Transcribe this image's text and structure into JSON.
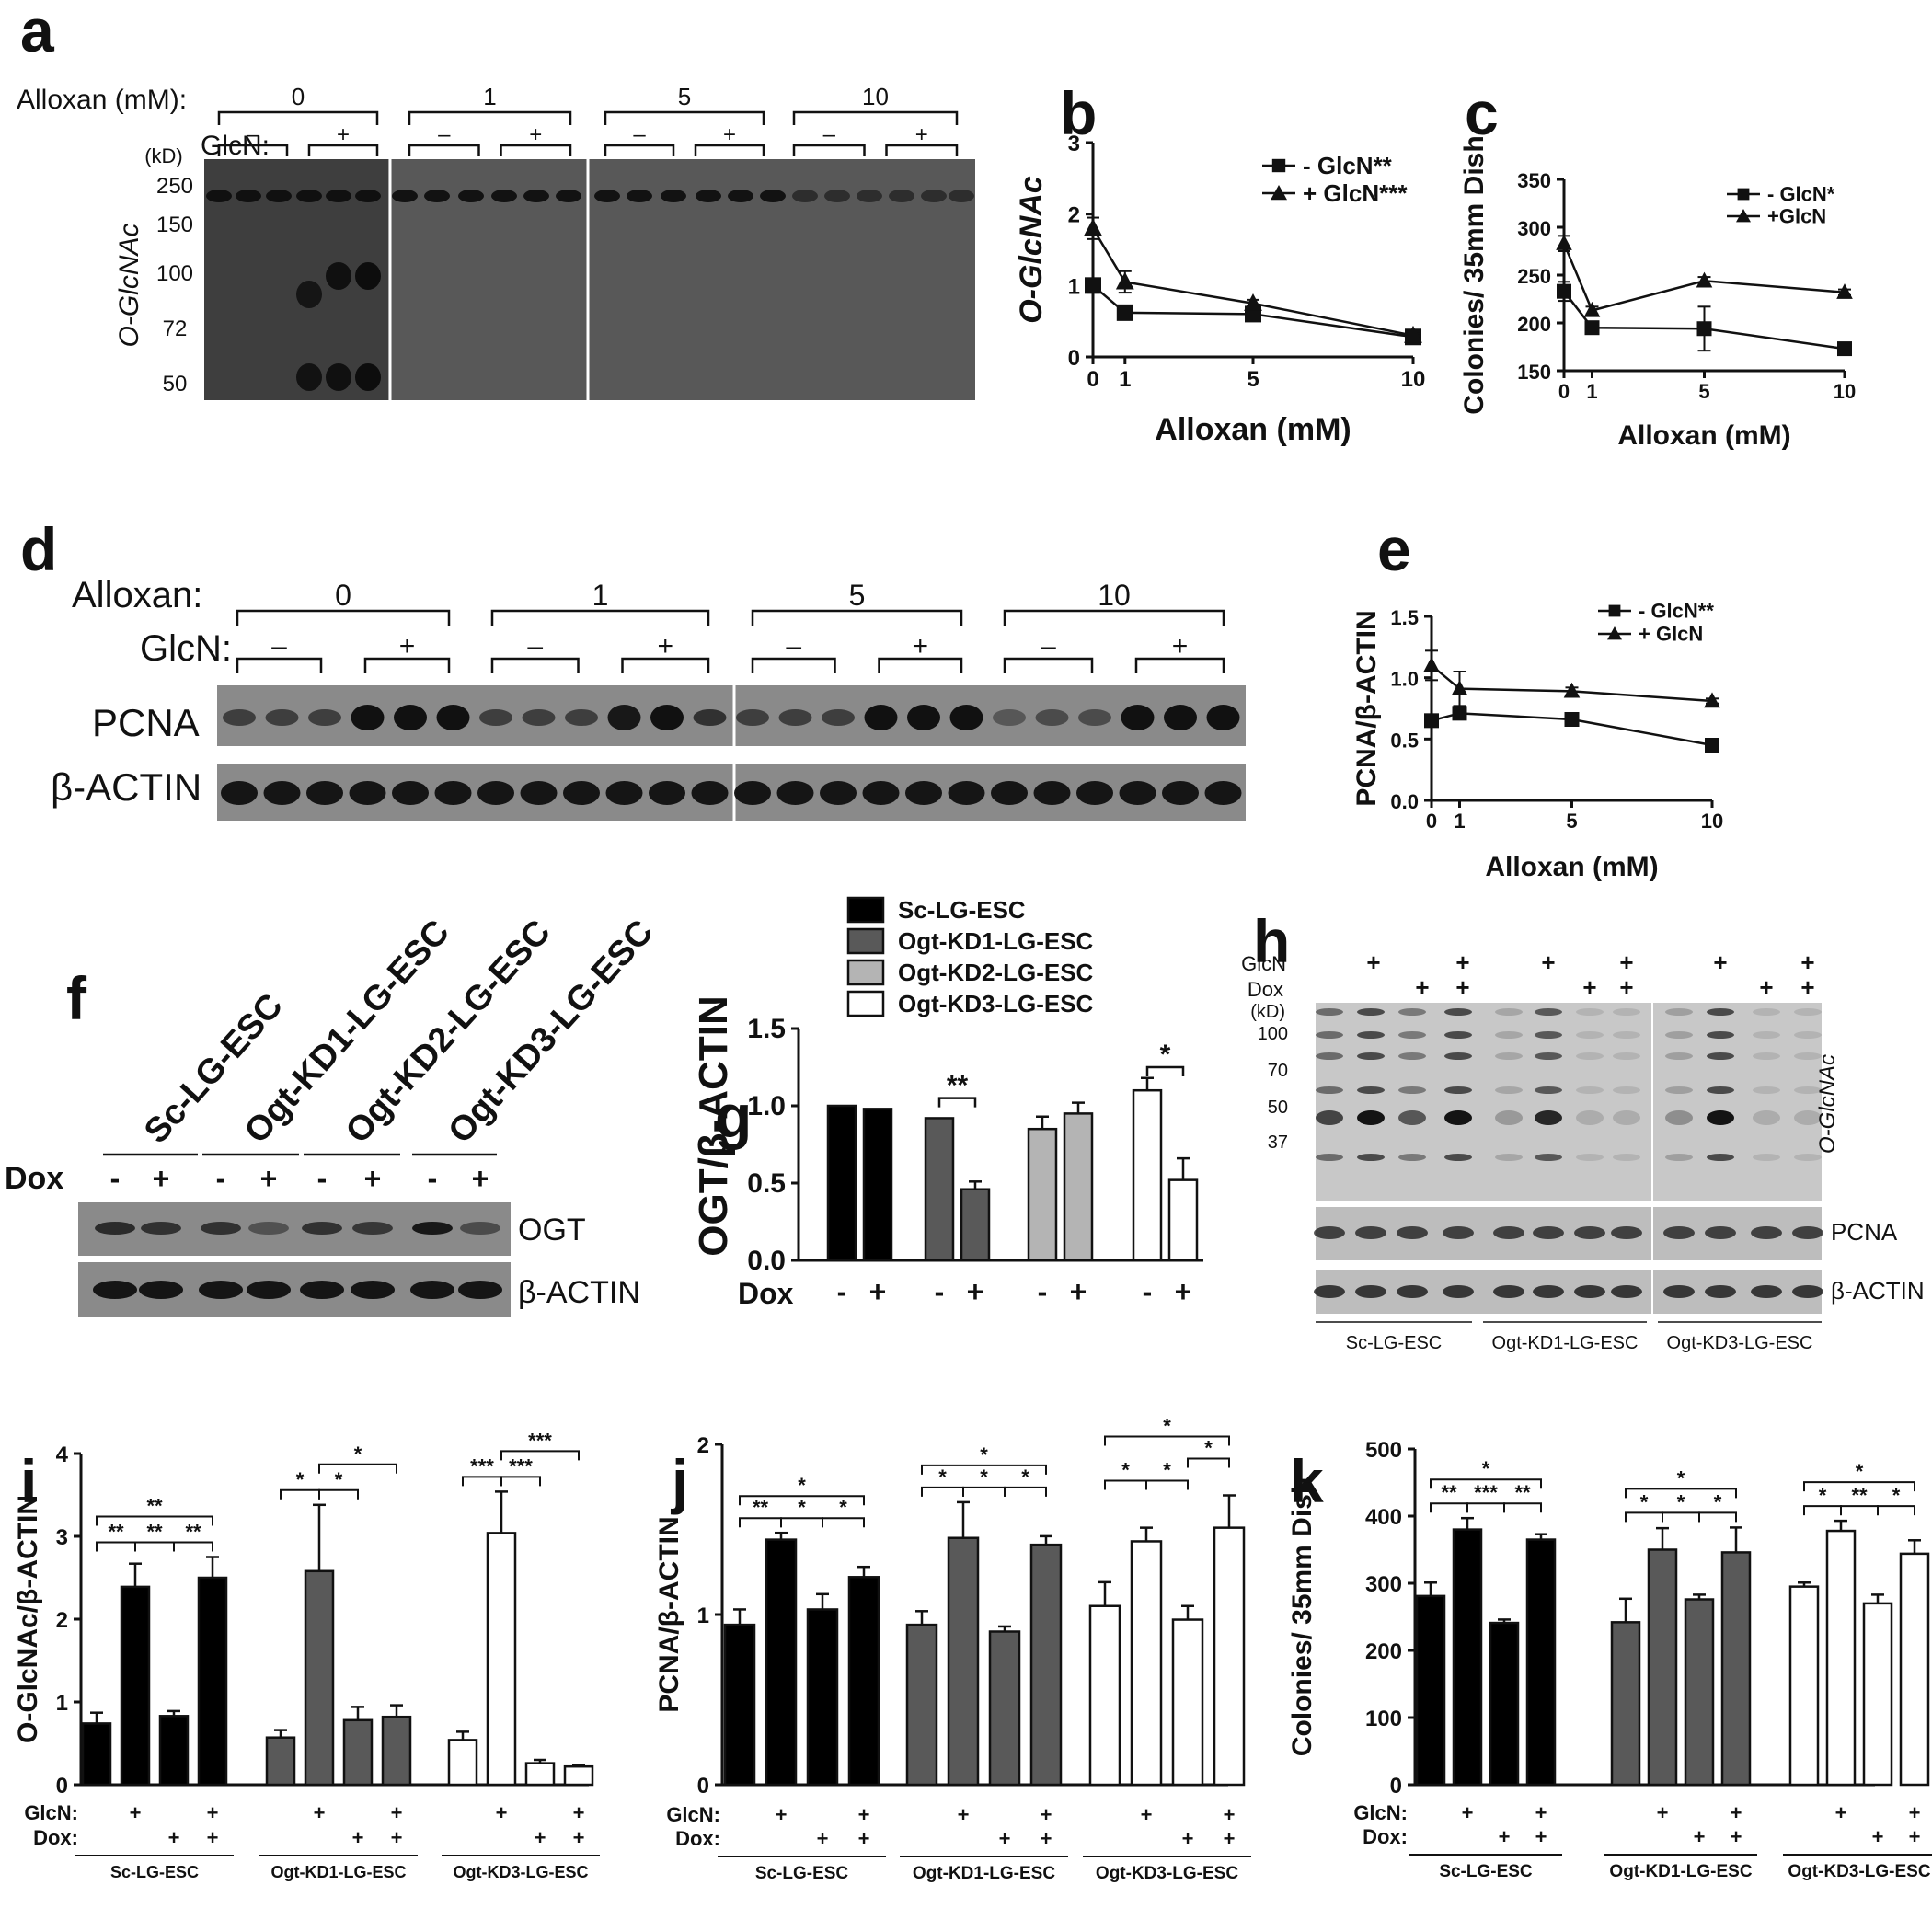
{
  "panel_labels": [
    "a",
    "b",
    "c",
    "d",
    "e",
    "f",
    "g",
    "h",
    "i",
    "j",
    "k"
  ],
  "blot_a": {
    "alloxan_label": "Alloxan (mM):",
    "alloxan_groups": [
      "0",
      "1",
      "5",
      "10"
    ],
    "glcn_label": "GlcN:",
    "minus": "–",
    "plus": "+",
    "kd_label": "(kD)",
    "markers": [
      "250",
      "150",
      "100",
      "72",
      "50"
    ],
    "protein": "O-GlcNAc"
  },
  "blot_d": {
    "alloxan_label": "Alloxan:",
    "alloxan_groups": [
      "0",
      "1",
      "5",
      "10"
    ],
    "glcn_label": "GlcN:",
    "minus": "–",
    "plus": "+",
    "rows": [
      "PCNA",
      "β-ACTIN"
    ]
  },
  "blot_f": {
    "lines": [
      "Sc-LG-ESC",
      "Ogt-KD1-LG-ESC",
      "Ogt-KD2-LG-ESC",
      "Ogt-KD3-LG-ESC"
    ],
    "dox_label": "Dox",
    "dox_signs": [
      "-",
      "+",
      "-",
      "+",
      "-",
      "+",
      "-",
      "+"
    ],
    "rows": [
      "OGT",
      "β-ACTIN"
    ]
  },
  "blot_h": {
    "glcn_label": "GlcN",
    "dox_label": "Dox",
    "glcn_signs": [
      "+",
      "",
      "+",
      "+",
      "",
      "+"
    ],
    "dox_signs": [
      "",
      "+",
      "+",
      "",
      "+",
      "+"
    ],
    "kd_label": "(kD)",
    "markers": [
      "100",
      "70",
      "50",
      "37"
    ],
    "rows": [
      "O-GlcNAc",
      "PCNA",
      "β-ACTIN"
    ],
    "groups": [
      "Sc-LG-ESC",
      "Ogt-KD1-LG-ESC",
      "Ogt-KD3-LG-ESC"
    ]
  },
  "chart_data": [
    {
      "panel": "b",
      "type": "line",
      "ylabel": "O-GlcNAc",
      "xlabel": "Alloxan (mM)",
      "xticks": [
        "0",
        "1",
        "5",
        "10"
      ],
      "yticks": [
        "0",
        "1",
        "2",
        "3"
      ],
      "xlim": [
        0,
        10
      ],
      "ylim": [
        0,
        3
      ],
      "series": [
        {
          "name": "- GlcN**",
          "marker": "square",
          "x": [
            0,
            1,
            5,
            10
          ],
          "y": [
            1.0,
            0.62,
            0.6,
            0.28
          ],
          "err": [
            0.1,
            0.05,
            0.08,
            0.04
          ]
        },
        {
          "name": "+ GlcN***",
          "marker": "triangle",
          "x": [
            0,
            1,
            5,
            10
          ],
          "y": [
            1.8,
            1.05,
            0.75,
            0.3
          ],
          "err": [
            0.15,
            0.15,
            0.05,
            0.03
          ]
        }
      ],
      "legend": "top-right"
    },
    {
      "panel": "c",
      "type": "line",
      "ylabel": "Colonies/ 35mm Dish",
      "xlabel": "Alloxan (mM)",
      "xticks": [
        "0",
        "1",
        "5",
        "10"
      ],
      "yticks": [
        "150",
        "200",
        "250",
        "300",
        "350"
      ],
      "xlim": [
        0,
        10
      ],
      "ylim": [
        150,
        350
      ],
      "series": [
        {
          "name": "- GlcN*",
          "marker": "square",
          "x": [
            0,
            1,
            5,
            10
          ],
          "y": [
            233,
            195,
            194,
            173
          ],
          "err": [
            10,
            5,
            23,
            4
          ]
        },
        {
          "name": "+GlcN",
          "marker": "triangle",
          "x": [
            0,
            1,
            5,
            10
          ],
          "y": [
            283,
            213,
            244,
            232
          ],
          "err": [
            8,
            4,
            4,
            3
          ]
        }
      ],
      "legend": "top-right"
    },
    {
      "panel": "e",
      "type": "line",
      "ylabel": "PCNA/β-ACTIN",
      "xlabel": "Alloxan (mM)",
      "xticks": [
        "0",
        "1",
        "5",
        "10"
      ],
      "yticks": [
        "0.0",
        "0.5",
        "1.0",
        "1.5"
      ],
      "xlim": [
        0,
        10
      ],
      "ylim": [
        0,
        1.5
      ],
      "series": [
        {
          "name": "- GlcN**",
          "marker": "square",
          "x": [
            0,
            1,
            5,
            10
          ],
          "y": [
            0.65,
            0.71,
            0.66,
            0.45
          ],
          "err": [
            0.05,
            0.05,
            0.03,
            0.03
          ]
        },
        {
          "name": "+ GlcN",
          "marker": "triangle",
          "x": [
            0,
            1,
            5,
            10
          ],
          "y": [
            1.1,
            0.91,
            0.89,
            0.81
          ],
          "err": [
            0.12,
            0.14,
            0.03,
            0.02
          ]
        }
      ],
      "legend": "top-right"
    },
    {
      "panel": "g",
      "type": "bar",
      "ylabel": "OGT/β-ACTIN",
      "yticks": [
        "0.0",
        "0.5",
        "1.0",
        "1.5"
      ],
      "ylim": [
        0,
        1.5
      ],
      "dox_label": "Dox",
      "dox_signs": [
        "-",
        "+",
        "-",
        "+",
        "-",
        "+",
        "-",
        "+"
      ],
      "series": [
        {
          "name": "Sc-LG-ESC",
          "color": "#000000",
          "values": [
            1.0,
            0.98
          ],
          "err": [
            0.0,
            0.0
          ]
        },
        {
          "name": "Ogt-KD1-LG-ESC",
          "color": "#595959",
          "values": [
            0.92,
            0.46
          ],
          "err": [
            0.0,
            0.05
          ]
        },
        {
          "name": "Ogt-KD2-LG-ESC",
          "color": "#b4b4b4",
          "values": [
            0.85,
            0.95
          ],
          "err": [
            0.08,
            0.07
          ]
        },
        {
          "name": "Ogt-KD3-LG-ESC",
          "color": "#ffffff",
          "values": [
            1.1,
            0.52
          ],
          "err": [
            0.08,
            0.14
          ]
        }
      ],
      "significance": [
        {
          "group": 1,
          "label": "**"
        },
        {
          "group": 3,
          "label": "*"
        }
      ],
      "legend": "top"
    },
    {
      "panel": "i",
      "type": "bar",
      "ylabel": "O-GlcNAc/β-ACTIN",
      "yticks": [
        "0",
        "1",
        "2",
        "3",
        "4"
      ],
      "ylim": [
        0,
        4
      ],
      "glcn_label": "GlcN:",
      "dox_label": "Dox:",
      "glcn_signs": [
        "",
        "+",
        "",
        "+"
      ],
      "dox_signs": [
        "",
        "",
        "+",
        "+"
      ],
      "groups": [
        {
          "name": "Sc-LG-ESC",
          "color": "#000000",
          "values": [
            0.74,
            2.39,
            0.83,
            2.5
          ],
          "err": [
            0.13,
            0.28,
            0.06,
            0.25
          ]
        },
        {
          "name": "Ogt-KD1-LG-ESC",
          "color": "#595959",
          "values": [
            0.57,
            2.58,
            0.78,
            0.82
          ],
          "err": [
            0.09,
            0.8,
            0.16,
            0.14
          ]
        },
        {
          "name": "Ogt-KD3-LG-ESC",
          "color": "#ffffff",
          "values": [
            0.54,
            3.04,
            0.26,
            0.22
          ],
          "err": [
            0.1,
            0.5,
            0.04,
            0.02
          ]
        }
      ],
      "significance": [
        {
          "group": 0,
          "from": 0,
          "to": 1,
          "label": "**",
          "level": 0
        },
        {
          "group": 0,
          "from": 1,
          "to": 2,
          "label": "**",
          "level": 0
        },
        {
          "group": 0,
          "from": 2,
          "to": 3,
          "label": "**",
          "level": 0
        },
        {
          "group": 0,
          "from": 0,
          "to": 3,
          "label": "**",
          "level": 1
        },
        {
          "group": 1,
          "from": 0,
          "to": 1,
          "label": "*",
          "level": 0
        },
        {
          "group": 1,
          "from": 1,
          "to": 2,
          "label": "*",
          "level": 0
        },
        {
          "group": 1,
          "from": 1,
          "to": 3,
          "label": "*",
          "level": 1
        },
        {
          "group": 2,
          "from": 0,
          "to": 1,
          "label": "***",
          "level": 0
        },
        {
          "group": 2,
          "from": 1,
          "to": 2,
          "label": "***",
          "level": 0
        },
        {
          "group": 2,
          "from": 1,
          "to": 3,
          "label": "***",
          "level": 1
        }
      ]
    },
    {
      "panel": "j",
      "type": "bar",
      "ylabel": "PCNA/β-ACTIN",
      "yticks": [
        "0",
        "1",
        "2"
      ],
      "ylim": [
        0,
        2
      ],
      "glcn_label": "GlcN:",
      "dox_label": "Dox:",
      "glcn_signs": [
        "",
        "+",
        "",
        "+"
      ],
      "dox_signs": [
        "",
        "",
        "+",
        "+"
      ],
      "groups": [
        {
          "name": "Sc-LG-ESC",
          "color": "#000000",
          "values": [
            0.94,
            1.44,
            1.03,
            1.22
          ],
          "err": [
            0.09,
            0.04,
            0.09,
            0.06
          ]
        },
        {
          "name": "Ogt-KD1-LG-ESC",
          "color": "#595959",
          "values": [
            0.94,
            1.45,
            0.9,
            1.41
          ],
          "err": [
            0.08,
            0.21,
            0.03,
            0.05
          ]
        },
        {
          "name": "Ogt-KD3-LG-ESC",
          "color": "#ffffff",
          "values": [
            1.05,
            1.43,
            0.97,
            1.51
          ],
          "err": [
            0.14,
            0.08,
            0.08,
            0.19
          ]
        }
      ],
      "significance": [
        {
          "group": 0,
          "from": 0,
          "to": 1,
          "label": "**",
          "level": 0
        },
        {
          "group": 0,
          "from": 1,
          "to": 2,
          "label": "*",
          "level": 0
        },
        {
          "group": 0,
          "from": 2,
          "to": 3,
          "label": "*",
          "level": 0
        },
        {
          "group": 0,
          "from": 0,
          "to": 3,
          "label": "*",
          "level": 1
        },
        {
          "group": 1,
          "from": 0,
          "to": 1,
          "label": "*",
          "level": 0
        },
        {
          "group": 1,
          "from": 1,
          "to": 2,
          "label": "*",
          "level": 0
        },
        {
          "group": 1,
          "from": 2,
          "to": 3,
          "label": "*",
          "level": 0
        },
        {
          "group": 1,
          "from": 0,
          "to": 3,
          "label": "*",
          "level": 1
        },
        {
          "group": 2,
          "from": 0,
          "to": 1,
          "label": "*",
          "level": 0
        },
        {
          "group": 2,
          "from": 1,
          "to": 2,
          "label": "*",
          "level": 0
        },
        {
          "group": 2,
          "from": 2,
          "to": 3,
          "label": "*",
          "level": 1
        },
        {
          "group": 2,
          "from": 0,
          "to": 3,
          "label": "*",
          "level": 2
        }
      ]
    },
    {
      "panel": "k",
      "type": "bar",
      "ylabel": "Colonies/ 35mm Dish",
      "yticks": [
        "0",
        "100",
        "200",
        "300",
        "400",
        "500"
      ],
      "ylim": [
        0,
        500
      ],
      "glcn_label": "GlcN:",
      "dox_label": "Dox:",
      "glcn_signs": [
        "",
        "+",
        "",
        "+"
      ],
      "dox_signs": [
        "",
        "",
        "+",
        "+"
      ],
      "groups": [
        {
          "name": "Sc-LG-ESC",
          "color": "#000000",
          "values": [
            281,
            380,
            241,
            365
          ],
          "err": [
            20,
            17,
            5,
            8
          ]
        },
        {
          "name": "Ogt-KD1-LG-ESC",
          "color": "#595959",
          "values": [
            242,
            350,
            276,
            346
          ],
          "err": [
            35,
            32,
            7,
            37
          ]
        },
        {
          "name": "Ogt-KD3-LG-ESC",
          "color": "#ffffff",
          "values": [
            295,
            378,
            270,
            344
          ],
          "err": [
            6,
            15,
            13,
            20
          ]
        }
      ],
      "significance": [
        {
          "group": 0,
          "from": 0,
          "to": 1,
          "label": "**",
          "level": 0
        },
        {
          "group": 0,
          "from": 1,
          "to": 2,
          "label": "***",
          "level": 0
        },
        {
          "group": 0,
          "from": 2,
          "to": 3,
          "label": "**",
          "level": 0
        },
        {
          "group": 0,
          "from": 0,
          "to": 3,
          "label": "*",
          "level": 1
        },
        {
          "group": 1,
          "from": 0,
          "to": 1,
          "label": "*",
          "level": 0
        },
        {
          "group": 1,
          "from": 1,
          "to": 2,
          "label": "*",
          "level": 0
        },
        {
          "group": 1,
          "from": 2,
          "to": 3,
          "label": "*",
          "level": 0
        },
        {
          "group": 1,
          "from": 0,
          "to": 3,
          "label": "*",
          "level": 1
        },
        {
          "group": 2,
          "from": 0,
          "to": 1,
          "label": "*",
          "level": 0
        },
        {
          "group": 2,
          "from": 1,
          "to": 2,
          "label": "**",
          "level": 0
        },
        {
          "group": 2,
          "from": 2,
          "to": 3,
          "label": "*",
          "level": 0
        },
        {
          "group": 2,
          "from": 0,
          "to": 3,
          "label": "*",
          "level": 1
        }
      ]
    }
  ]
}
